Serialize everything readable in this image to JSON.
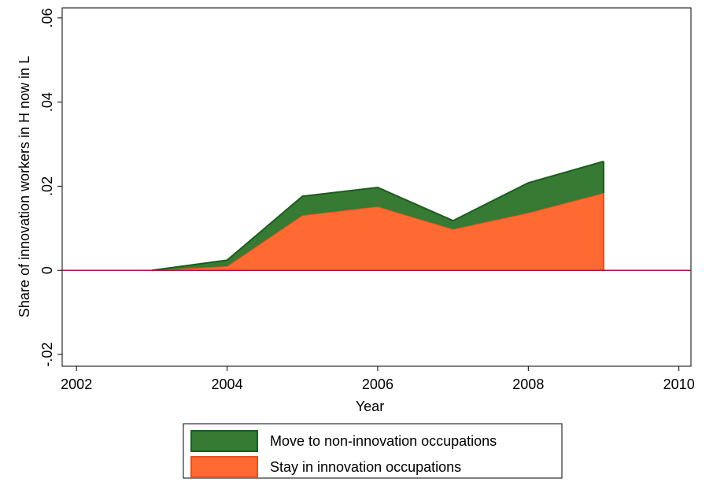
{
  "chart_data": {
    "type": "stacked_area",
    "x_label": "Year",
    "y_label": "Share of innovation workers in H now in L",
    "x": [
      2003,
      2004,
      2005,
      2006,
      2007,
      2008,
      2009
    ],
    "series": [
      {
        "name": "Stay in innovation occupations",
        "color": "#ff6a33",
        "edge_color": "#e8501c",
        "values": [
          0,
          0.001,
          0.0131,
          0.0152,
          0.0098,
          0.0137,
          0.0184
        ]
      },
      {
        "name": "Move to non-innovation occupations",
        "color": "#367a34",
        "edge_color": "#1b5e1f",
        "values": [
          0,
          0.0014,
          0.0045,
          0.0045,
          0.002,
          0.0071,
          0.0075
        ]
      }
    ],
    "reference_line": 0,
    "reference_color": "#b0124a",
    "xlim": [
      2001.81,
      2010.16
    ],
    "xticks": [
      2002,
      2004,
      2006,
      2008,
      2010
    ],
    "ylim": [
      -0.0228,
      0.0624
    ],
    "yticks": [
      {
        "value": -0.02,
        "label": "-.02"
      },
      0,
      {
        "value": 0.02,
        "label": ".02"
      },
      {
        "value": 0.04,
        "label": ".04"
      },
      {
        "value": 0.06,
        "label": ".06"
      }
    ],
    "legend": "bottom"
  }
}
